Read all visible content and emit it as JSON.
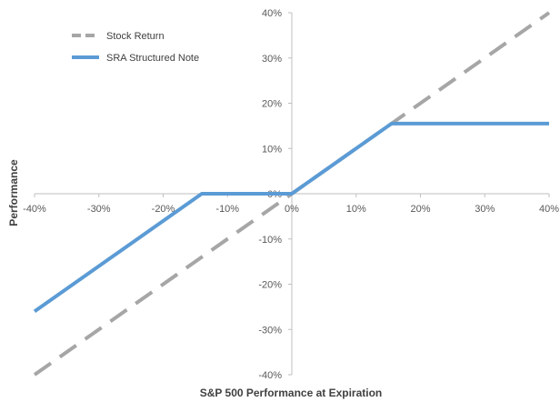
{
  "chart_data": {
    "type": "line",
    "xlabel": "S&P 500 Performance at Expiration",
    "ylabel": "Performance",
    "xlim": [
      -0.4,
      0.4
    ],
    "ylim": [
      -0.4,
      0.4
    ],
    "x_ticks": [
      -0.4,
      -0.3,
      -0.2,
      -0.1,
      0,
      0.1,
      0.2,
      0.3,
      0.4
    ],
    "y_ticks": [
      -0.4,
      -0.3,
      -0.2,
      -0.1,
      0,
      0.1,
      0.2,
      0.3,
      0.4
    ],
    "x_tick_labels": [
      "-40%",
      "-30%",
      "-20%",
      "-10%",
      "0%",
      "10%",
      "20%",
      "30%",
      "40%"
    ],
    "y_tick_labels": [
      "-40%",
      "-30%",
      "-20%",
      "-10%",
      "0%",
      "10%",
      "20%",
      "30%",
      "40%"
    ],
    "grid": false,
    "legend_position": "top-left",
    "series": [
      {
        "name": "Stock Return",
        "color": "#a6a6a6",
        "style": "dashed",
        "points": [
          [
            -0.4,
            -0.4
          ],
          [
            0.4,
            0.4
          ]
        ]
      },
      {
        "name": "SRA Structured Note",
        "color": "#5b9bd5",
        "style": "solid",
        "points": [
          [
            -0.4,
            -0.26
          ],
          [
            -0.14,
            0
          ],
          [
            0,
            0
          ],
          [
            0.155,
            0.155
          ],
          [
            0.4,
            0.155
          ]
        ]
      }
    ]
  }
}
